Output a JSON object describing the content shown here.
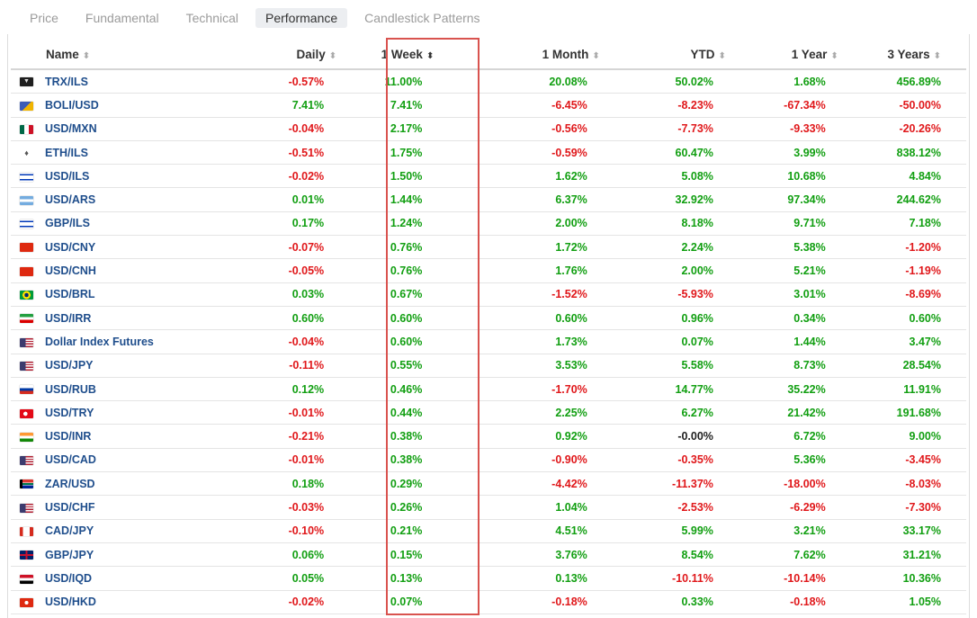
{
  "tabs": [
    {
      "label": "Price",
      "active": false
    },
    {
      "label": "Fundamental",
      "active": false
    },
    {
      "label": "Technical",
      "active": false
    },
    {
      "label": "Performance",
      "active": true
    },
    {
      "label": "Candlestick Patterns",
      "active": false
    }
  ],
  "table": {
    "columns": [
      "Name",
      "Daily",
      "1 Week",
      "1 Month",
      "YTD",
      "1 Year",
      "3 Years"
    ],
    "sort_symbol": "⬍",
    "sorted_column": "1 Week",
    "rows": [
      {
        "name": "TRX/ILS",
        "flag": "tron",
        "daily": "-0.57%",
        "week": "11.00%",
        "month": "20.08%",
        "ytd": "50.02%",
        "year": "1.68%",
        "three_years": "456.89%"
      },
      {
        "name": "BOLI/USD",
        "flag": "boli",
        "daily": "7.41%",
        "week": "7.41%",
        "month": "-6.45%",
        "ytd": "-8.23%",
        "year": "-67.34%",
        "three_years": "-50.00%"
      },
      {
        "name": "USD/MXN",
        "flag": "mx",
        "daily": "-0.04%",
        "week": "2.17%",
        "month": "-0.56%",
        "ytd": "-7.73%",
        "year": "-9.33%",
        "three_years": "-20.26%"
      },
      {
        "name": "ETH/ILS",
        "flag": "eth",
        "daily": "-0.51%",
        "week": "1.75%",
        "month": "-0.59%",
        "ytd": "60.47%",
        "year": "3.99%",
        "three_years": "838.12%"
      },
      {
        "name": "USD/ILS",
        "flag": "il",
        "daily": "-0.02%",
        "week": "1.50%",
        "month": "1.62%",
        "ytd": "5.08%",
        "year": "10.68%",
        "three_years": "4.84%"
      },
      {
        "name": "USD/ARS",
        "flag": "ar",
        "daily": "0.01%",
        "week": "1.44%",
        "month": "6.37%",
        "ytd": "32.92%",
        "year": "97.34%",
        "three_years": "244.62%"
      },
      {
        "name": "GBP/ILS",
        "flag": "il",
        "daily": "0.17%",
        "week": "1.24%",
        "month": "2.00%",
        "ytd": "8.18%",
        "year": "9.71%",
        "three_years": "7.18%"
      },
      {
        "name": "USD/CNY",
        "flag": "cn",
        "daily": "-0.07%",
        "week": "0.76%",
        "month": "1.72%",
        "ytd": "2.24%",
        "year": "5.38%",
        "three_years": "-1.20%"
      },
      {
        "name": "USD/CNH",
        "flag": "cn",
        "daily": "-0.05%",
        "week": "0.76%",
        "month": "1.76%",
        "ytd": "2.00%",
        "year": "5.21%",
        "three_years": "-1.19%"
      },
      {
        "name": "USD/BRL",
        "flag": "br",
        "daily": "0.03%",
        "week": "0.67%",
        "month": "-1.52%",
        "ytd": "-5.93%",
        "year": "3.01%",
        "three_years": "-8.69%"
      },
      {
        "name": "USD/IRR",
        "flag": "ir",
        "daily": "0.60%",
        "week": "0.60%",
        "month": "0.60%",
        "ytd": "0.96%",
        "year": "0.34%",
        "three_years": "0.60%"
      },
      {
        "name": "Dollar Index Futures",
        "flag": "us",
        "daily": "-0.04%",
        "week": "0.60%",
        "month": "1.73%",
        "ytd": "0.07%",
        "year": "1.44%",
        "three_years": "3.47%"
      },
      {
        "name": "USD/JPY",
        "flag": "us",
        "daily": "-0.11%",
        "week": "0.55%",
        "month": "3.53%",
        "ytd": "5.58%",
        "year": "8.73%",
        "three_years": "28.54%"
      },
      {
        "name": "USD/RUB",
        "flag": "ru",
        "daily": "0.12%",
        "week": "0.46%",
        "month": "-1.70%",
        "ytd": "14.77%",
        "year": "35.22%",
        "three_years": "11.91%"
      },
      {
        "name": "USD/TRY",
        "flag": "tr",
        "daily": "-0.01%",
        "week": "0.44%",
        "month": "2.25%",
        "ytd": "6.27%",
        "year": "21.42%",
        "three_years": "191.68%"
      },
      {
        "name": "USD/INR",
        "flag": "in",
        "daily": "-0.21%",
        "week": "0.38%",
        "month": "0.92%",
        "ytd": "-0.00%",
        "year": "6.72%",
        "three_years": "9.00%"
      },
      {
        "name": "USD/CAD",
        "flag": "us",
        "daily": "-0.01%",
        "week": "0.38%",
        "month": "-0.90%",
        "ytd": "-0.35%",
        "year": "5.36%",
        "three_years": "-3.45%"
      },
      {
        "name": "ZAR/USD",
        "flag": "za",
        "daily": "0.18%",
        "week": "0.29%",
        "month": "-4.42%",
        "ytd": "-11.37%",
        "year": "-18.00%",
        "three_years": "-8.03%"
      },
      {
        "name": "USD/CHF",
        "flag": "us",
        "daily": "-0.03%",
        "week": "0.26%",
        "month": "1.04%",
        "ytd": "-2.53%",
        "year": "-6.29%",
        "three_years": "-7.30%"
      },
      {
        "name": "CAD/JPY",
        "flag": "ca",
        "daily": "-0.10%",
        "week": "0.21%",
        "month": "4.51%",
        "ytd": "5.99%",
        "year": "3.21%",
        "three_years": "33.17%"
      },
      {
        "name": "GBP/JPY",
        "flag": "gb",
        "daily": "0.06%",
        "week": "0.15%",
        "month": "3.76%",
        "ytd": "8.54%",
        "year": "7.62%",
        "three_years": "31.21%"
      },
      {
        "name": "USD/IQD",
        "flag": "iq",
        "daily": "0.05%",
        "week": "0.13%",
        "month": "0.13%",
        "ytd": "-10.11%",
        "year": "-10.14%",
        "three_years": "10.36%"
      },
      {
        "name": "USD/HKD",
        "flag": "hk",
        "daily": "-0.02%",
        "week": "0.07%",
        "month": "-0.18%",
        "ytd": "0.33%",
        "year": "-0.18%",
        "three_years": "1.05%"
      }
    ]
  },
  "colors": {
    "positive": "#129f12",
    "negative": "#e0181b",
    "link": "#1f4e8c",
    "highlight": "#d9534f"
  }
}
